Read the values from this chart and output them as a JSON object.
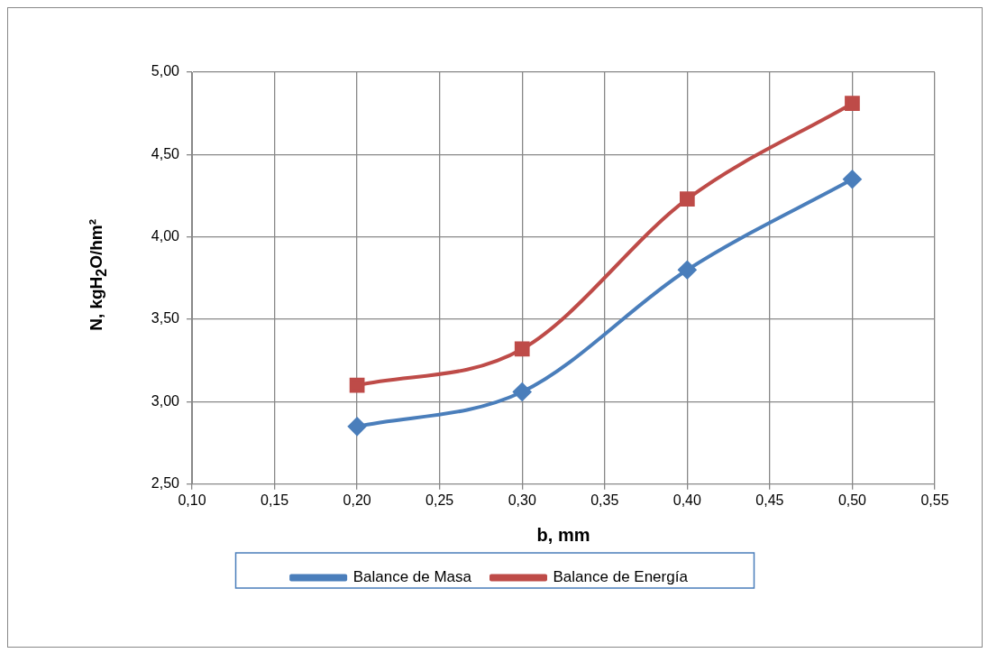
{
  "chart_data": {
    "type": "line",
    "xlabel": "b, mm",
    "ylabel": "N, kgH$_{2}$O/hm²",
    "x": [
      0.2,
      0.3,
      0.4,
      0.5
    ],
    "series": [
      {
        "name": "Balance de Masa",
        "color": "#4a7ebb",
        "marker": "diamond",
        "values": [
          2.85,
          3.06,
          3.8,
          4.35
        ]
      },
      {
        "name": "Balance de Energía",
        "color": "#be4b48",
        "marker": "square",
        "values": [
          3.1,
          3.32,
          4.23,
          4.81
        ]
      }
    ],
    "xlim": [
      0.1,
      0.55
    ],
    "xticks": [
      {
        "value": 0.1,
        "label": "0,10"
      },
      {
        "value": 0.15,
        "label": "0,15"
      },
      {
        "value": 0.2,
        "label": "0,20"
      },
      {
        "value": 0.25,
        "label": "0,25"
      },
      {
        "value": 0.3,
        "label": "0,30"
      },
      {
        "value": 0.35,
        "label": "0,35"
      },
      {
        "value": 0.4,
        "label": "0,40"
      },
      {
        "value": 0.45,
        "label": "0,45"
      },
      {
        "value": 0.5,
        "label": "0,50"
      },
      {
        "value": 0.55,
        "label": "0,55"
      }
    ],
    "ylim": [
      2.5,
      5
    ],
    "yticks": [
      {
        "value": 2.5,
        "label": "2,50"
      },
      {
        "value": 3,
        "label": "3,00"
      },
      {
        "value": 3.5,
        "label": "3,50"
      },
      {
        "value": 4,
        "label": "4,00"
      },
      {
        "value": 4.5,
        "label": "4,50"
      },
      {
        "value": 5,
        "label": "5,00"
      }
    ],
    "grid": true,
    "legend": "bottom",
    "line_style": "solid"
  }
}
